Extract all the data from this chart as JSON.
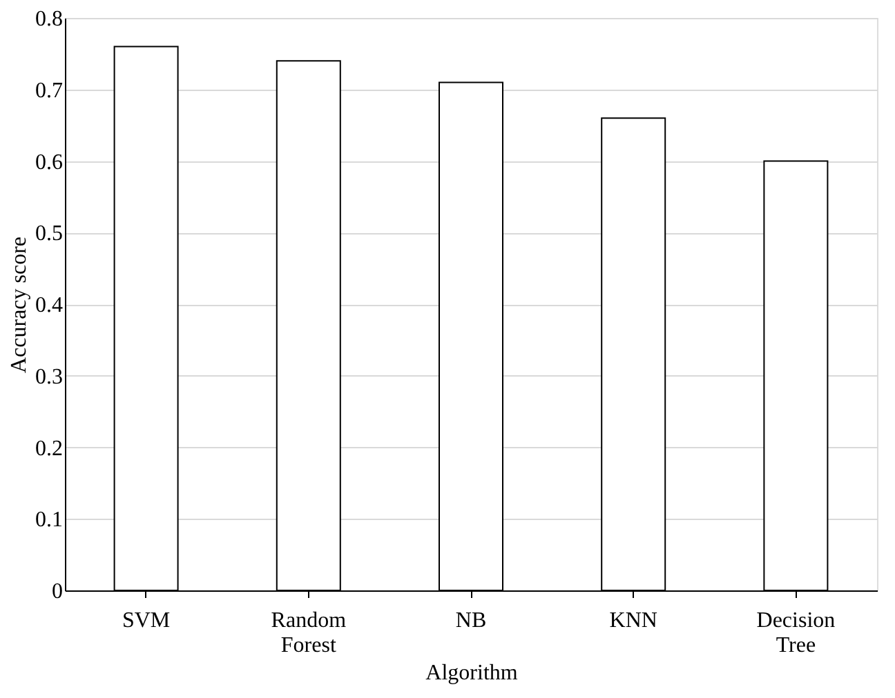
{
  "chart_data": {
    "type": "bar",
    "xlabel": "Algorithm",
    "ylabel": "Accuracy score",
    "categories": [
      "SVM",
      "Random Forest",
      "NB",
      "KNN",
      "Decision Tree"
    ],
    "values": [
      0.76,
      0.74,
      0.71,
      0.66,
      0.6
    ],
    "color": "#ffffff",
    "ylim": [
      0,
      0.8
    ],
    "yticks": [
      0,
      0.1,
      0.2,
      0.3,
      0.4,
      0.5,
      0.6,
      0.7,
      0.8
    ],
    "grid": "y"
  }
}
